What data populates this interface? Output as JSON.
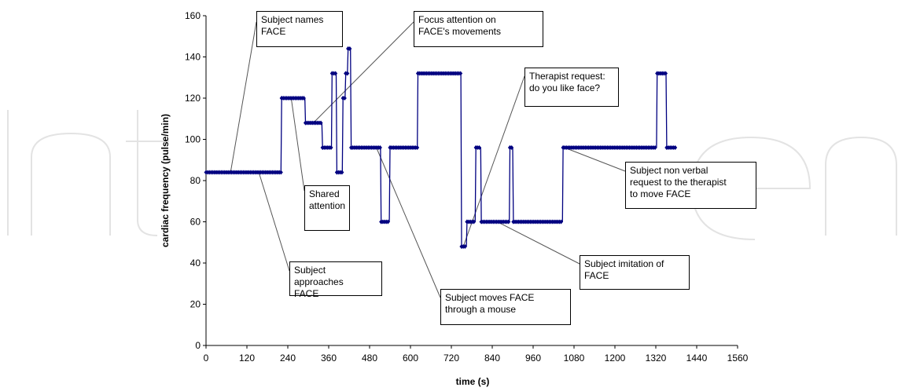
{
  "chart_data": {
    "type": "line",
    "xlabel": "time (s)",
    "ylabel": "cardiac frequency (pulse/min)",
    "xlim": [
      0,
      1560
    ],
    "ylim": [
      0,
      160
    ],
    "x_ticks": [
      0,
      120,
      240,
      360,
      480,
      600,
      720,
      840,
      960,
      1080,
      1200,
      1320,
      1440,
      1560
    ],
    "y_ticks": [
      0,
      20,
      40,
      60,
      80,
      100,
      120,
      140,
      160
    ],
    "grid": false,
    "legend": "none",
    "series": [
      {
        "color": "#000080",
        "points": [
          [
            0,
            84
          ],
          [
            220,
            84
          ],
          [
            222,
            120
          ],
          [
            290,
            120
          ],
          [
            292,
            108
          ],
          [
            340,
            108
          ],
          [
            342,
            96
          ],
          [
            368,
            96
          ],
          [
            370,
            132
          ],
          [
            382,
            132
          ],
          [
            384,
            84
          ],
          [
            400,
            84
          ],
          [
            402,
            120
          ],
          [
            408,
            120
          ],
          [
            410,
            132
          ],
          [
            415,
            132
          ],
          [
            417,
            144
          ],
          [
            424,
            144
          ],
          [
            426,
            96
          ],
          [
            512,
            96
          ],
          [
            514,
            60
          ],
          [
            538,
            60
          ],
          [
            540,
            96
          ],
          [
            620,
            96
          ],
          [
            622,
            132
          ],
          [
            748,
            132
          ],
          [
            750,
            48
          ],
          [
            764,
            48
          ],
          [
            766,
            60
          ],
          [
            790,
            60
          ],
          [
            792,
            96
          ],
          [
            806,
            96
          ],
          [
            808,
            60
          ],
          [
            890,
            60
          ],
          [
            892,
            96
          ],
          [
            900,
            96
          ],
          [
            902,
            60
          ],
          [
            1046,
            60
          ],
          [
            1048,
            96
          ],
          [
            1322,
            96
          ],
          [
            1324,
            132
          ],
          [
            1350,
            132
          ],
          [
            1352,
            96
          ],
          [
            1378,
            96
          ]
        ]
      }
    ],
    "annotations": [
      {
        "text": "Subject names\nFACE",
        "target": [
          72,
          84
        ]
      },
      {
        "text": "Focus attention on\nFACE's movements",
        "target": [
          315,
          108
        ]
      },
      {
        "text": "Shared\nattention",
        "target": [
          250,
          120
        ]
      },
      {
        "text": "Subject approaches\nFACE",
        "target": [
          155,
          84
        ]
      },
      {
        "text": "Subject moves FACE\nthrough a mouse",
        "target": [
          500,
          96
        ]
      },
      {
        "text": "Therapist request:\ndo you like face?",
        "target": [
          755,
          48
        ]
      },
      {
        "text": "Subject imitation of\nFACE",
        "target": [
          855,
          60
        ]
      },
      {
        "text": "Subject non verbal\nrequest to the therapist\nto move FACE",
        "target": [
          1052,
          96
        ]
      }
    ]
  }
}
